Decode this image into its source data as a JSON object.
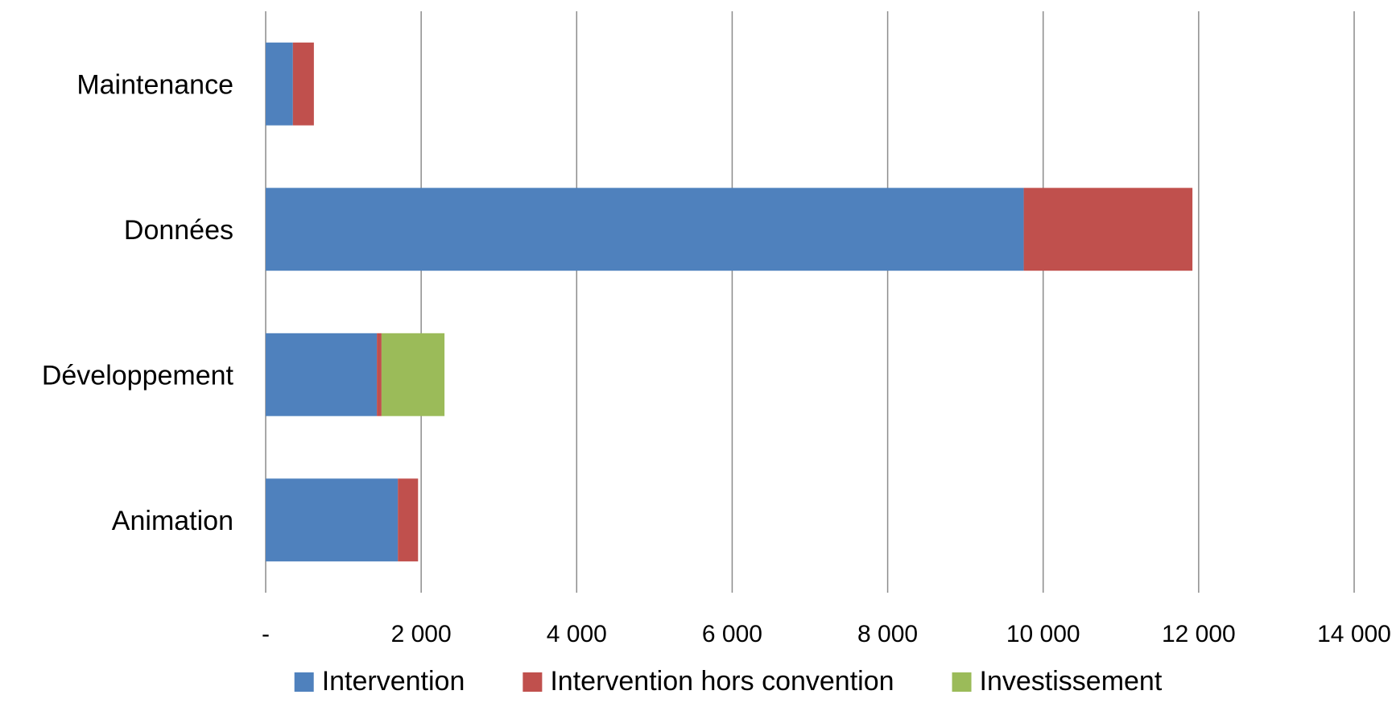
{
  "chart_data": {
    "type": "bar",
    "orientation": "horizontal",
    "stacked": true,
    "categories": [
      "Maintenance",
      "Données",
      "Développement",
      "Animation"
    ],
    "series": [
      {
        "name": "Intervention",
        "color": "#4f81bd",
        "values": [
          350,
          9750,
          1430,
          1700
        ]
      },
      {
        "name": "Intervention hors convention",
        "color": "#c0504d",
        "values": [
          270,
          2170,
          60,
          260
        ]
      },
      {
        "name": "Investissement",
        "color": "#9bbb59",
        "values": [
          0,
          0,
          810,
          0
        ]
      }
    ],
    "xlim": [
      0,
      14000
    ],
    "x_ticks": [
      0,
      2000,
      4000,
      6000,
      8000,
      10000,
      12000,
      14000
    ],
    "x_tick_labels": [
      "-",
      "2 000",
      "4 000",
      "6 000",
      "8 000",
      "10 000",
      "12 000",
      "14 000"
    ],
    "grid": "vertical",
    "legend": "bottom",
    "title": "",
    "xlabel": "",
    "ylabel": ""
  }
}
